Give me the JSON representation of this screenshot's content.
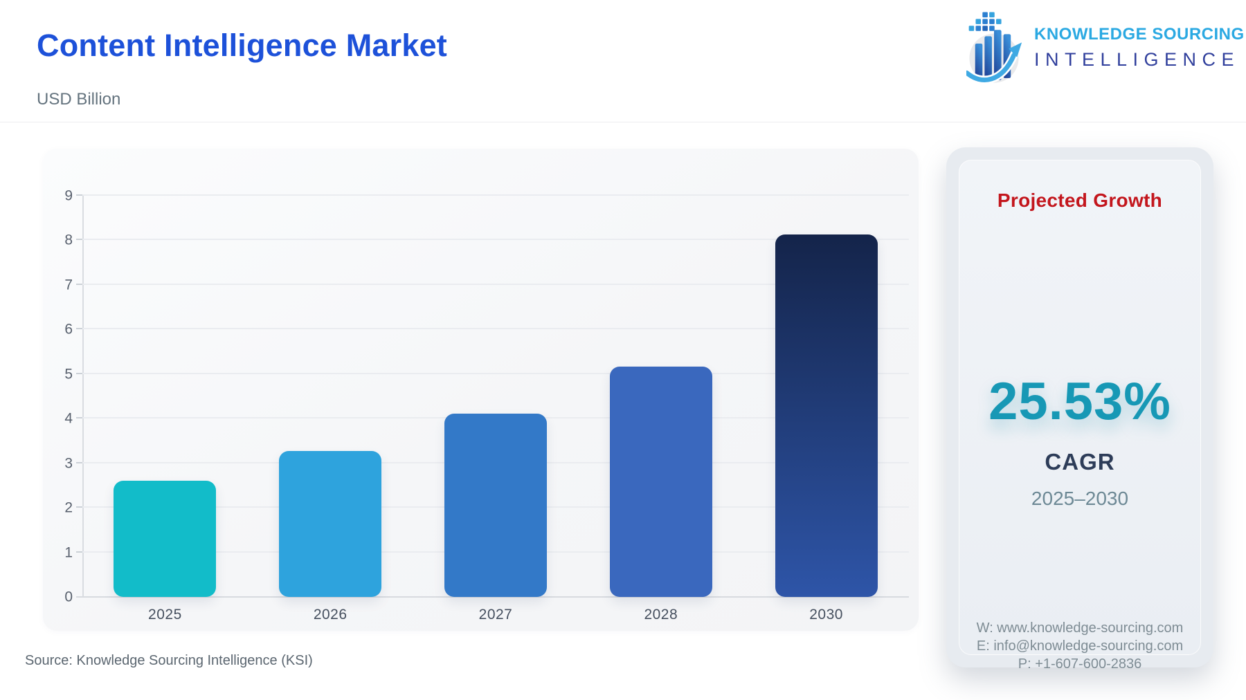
{
  "header": {
    "title": "Content Intelligence Market",
    "subtitle": "USD Billion",
    "title_color": "#1d51d9"
  },
  "logo": {
    "line1": "KNOWLEDGE SOURCING",
    "line2": "INTELLIGENCE",
    "line1_color": "#2ba9e2",
    "line2_color": "#303f9c"
  },
  "chart_data": {
    "type": "bar",
    "title": "Content Intelligence Market",
    "ylabel": "USD Billion",
    "categories": [
      "2025",
      "2026",
      "2027",
      "2028",
      "2030"
    ],
    "values": [
      2.61,
      3.28,
      4.11,
      5.16,
      8.13
    ],
    "ylim": [
      0,
      9
    ],
    "yticks": [
      0,
      1,
      2,
      3,
      4,
      5,
      6,
      7,
      8,
      9
    ],
    "grid": true,
    "legend": "none",
    "bar_colors": [
      {
        "type": "solid",
        "value": "#12bcc9"
      },
      {
        "type": "solid",
        "value": "#2ea3dd"
      },
      {
        "type": "solid",
        "value": "#3379c8"
      },
      {
        "type": "solid",
        "value": "#3a68be"
      },
      {
        "type": "gradient",
        "from": "#14244a",
        "to": "#2e55a8"
      }
    ]
  },
  "panel": {
    "title": "Projected Growth",
    "title_color": "#c3161d",
    "value": "25.53%",
    "value_color": "#1798b5",
    "value_label": "CAGR",
    "period": "2025–2030",
    "contact": {
      "website": "W: www.knowledge-sourcing.com",
      "email": "E: info@knowledge-sourcing.com",
      "phone": "P: +1-607-600-2836"
    }
  },
  "footer": {
    "source": "Source: Knowledge Sourcing Intelligence (KSI)"
  }
}
